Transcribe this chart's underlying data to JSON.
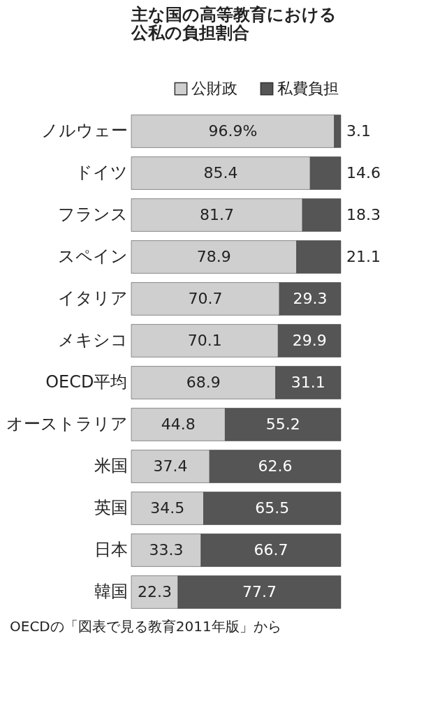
{
  "chart_data": {
    "type": "bar",
    "orientation": "horizontal",
    "stacked": true,
    "title": "主な国の高等教育における公私の負担割合",
    "annotations": [
      "OECDの「図表で見る教育2011年版」から"
    ],
    "categories": [
      "ノルウェー",
      "ドイツ",
      "フランス",
      "スペイン",
      "イタリア",
      "メキシコ",
      "OECD平均",
      "オーストラリア",
      "米国",
      "英国",
      "日本",
      "韓国"
    ],
    "series": [
      {
        "name": "公財政",
        "color": "#cfcfcf",
        "values": [
          96.9,
          85.4,
          81.7,
          78.9,
          70.7,
          70.1,
          68.9,
          44.8,
          37.4,
          34.5,
          33.3,
          22.3
        ],
        "value_labels": [
          "96.9%",
          "85.4",
          "81.7",
          "78.9",
          "70.7",
          "70.1",
          "68.9",
          "44.8",
          "37.4",
          "34.5",
          "33.3",
          "22.3"
        ]
      },
      {
        "name": "私費負担",
        "color": "#555555",
        "values": [
          3.1,
          14.6,
          18.3,
          21.1,
          29.3,
          29.9,
          31.1,
          55.2,
          62.6,
          65.5,
          66.7,
          77.7
        ],
        "value_labels": [
          "3.1",
          "14.6",
          "18.3",
          "21.1",
          "29.3",
          "29.9",
          "31.1",
          "55.2",
          "62.6",
          "65.5",
          "66.7",
          "77.7"
        ]
      }
    ],
    "xlim": [
      0,
      100
    ],
    "tick_labels": "y",
    "grid": false,
    "legend": "top right"
  }
}
